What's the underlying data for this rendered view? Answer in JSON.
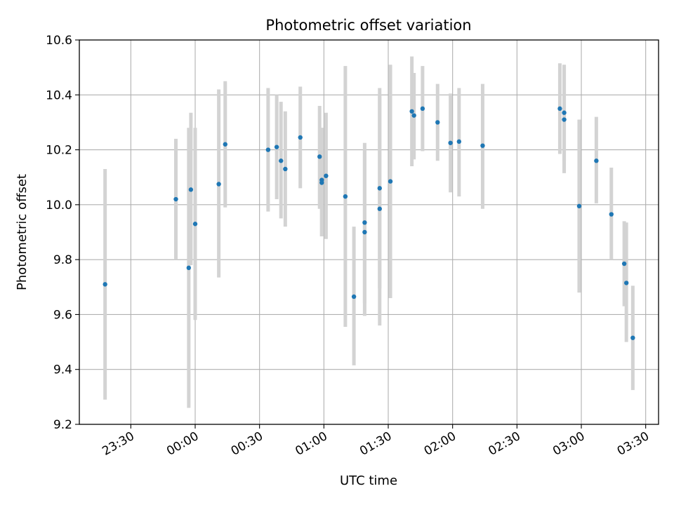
{
  "chart_data": {
    "type": "scatter",
    "title": "Photometric offset variation",
    "xlabel": "UTC time",
    "ylabel": "Photometric offset",
    "x_range": [
      "23:06",
      "03:36"
    ],
    "ylim": [
      9.2,
      10.6
    ],
    "grid": true,
    "x_ticks": [
      "23:30",
      "00:00",
      "00:30",
      "01:00",
      "01:30",
      "02:00",
      "02:30",
      "03:00",
      "03:30"
    ],
    "y_ticks": [
      "9.2",
      "9.4",
      "9.6",
      "9.8",
      "10.0",
      "10.2",
      "10.4",
      "10.6"
    ],
    "marker_color": "#1f77b4",
    "errorbar_color": "#d3d3d3",
    "series": [
      {
        "points": [
          {
            "x": "23:18",
            "y": 9.71,
            "lo": 9.29,
            "hi": 10.13
          },
          {
            "x": "23:51",
            "y": 10.02,
            "lo": 9.8,
            "hi": 10.24
          },
          {
            "x": "23:57",
            "y": 9.77,
            "lo": 9.26,
            "hi": 10.28
          },
          {
            "x": "23:58",
            "y": 10.055,
            "lo": 9.78,
            "hi": 10.335
          },
          {
            "x": "00:00",
            "y": 9.93,
            "lo": 9.58,
            "hi": 10.28
          },
          {
            "x": "00:11",
            "y": 10.075,
            "lo": 9.735,
            "hi": 10.42
          },
          {
            "x": "00:14",
            "y": 10.22,
            "lo": 9.99,
            "hi": 10.45
          },
          {
            "x": "00:34",
            "y": 10.2,
            "lo": 9.975,
            "hi": 10.425
          },
          {
            "x": "00:38",
            "y": 10.21,
            "lo": 10.02,
            "hi": 10.4
          },
          {
            "x": "00:40",
            "y": 10.16,
            "lo": 9.95,
            "hi": 10.375
          },
          {
            "x": "00:42",
            "y": 10.13,
            "lo": 9.92,
            "hi": 10.34
          },
          {
            "x": "00:49",
            "y": 10.245,
            "lo": 10.06,
            "hi": 10.43
          },
          {
            "x": "00:58",
            "y": 10.175,
            "lo": 9.985,
            "hi": 10.36
          },
          {
            "x": "00:59",
            "y": 10.09,
            "lo": 9.885,
            "hi": 10.28
          },
          {
            "x": "00:59",
            "y": 10.08,
            "lo": 9.885,
            "hi": 10.28
          },
          {
            "x": "01:01",
            "y": 10.105,
            "lo": 9.875,
            "hi": 10.335
          },
          {
            "x": "01:10",
            "y": 10.03,
            "lo": 9.555,
            "hi": 10.505
          },
          {
            "x": "01:14",
            "y": 9.665,
            "lo": 9.415,
            "hi": 9.92
          },
          {
            "x": "01:19",
            "y": 9.935,
            "lo": 9.64,
            "hi": 10.225
          },
          {
            "x": "01:19",
            "y": 9.9,
            "lo": 9.595,
            "hi": 10.2
          },
          {
            "x": "01:26",
            "y": 10.06,
            "lo": 9.695,
            "hi": 10.425
          },
          {
            "x": "01:26",
            "y": 9.985,
            "lo": 9.56,
            "hi": 10.4
          },
          {
            "x": "01:31",
            "y": 10.085,
            "lo": 9.66,
            "hi": 10.51
          },
          {
            "x": "01:41",
            "y": 10.34,
            "lo": 10.14,
            "hi": 10.54
          },
          {
            "x": "01:42",
            "y": 10.325,
            "lo": 10.165,
            "hi": 10.48
          },
          {
            "x": "01:46",
            "y": 10.35,
            "lo": 10.195,
            "hi": 10.505
          },
          {
            "x": "01:53",
            "y": 10.3,
            "lo": 10.16,
            "hi": 10.44
          },
          {
            "x": "01:59",
            "y": 10.225,
            "lo": 10.045,
            "hi": 10.405
          },
          {
            "x": "02:03",
            "y": 10.23,
            "lo": 10.03,
            "hi": 10.425
          },
          {
            "x": "02:14",
            "y": 10.215,
            "lo": 9.985,
            "hi": 10.44
          },
          {
            "x": "02:50",
            "y": 10.35,
            "lo": 10.185,
            "hi": 10.515
          },
          {
            "x": "02:52",
            "y": 10.335,
            "lo": 10.16,
            "hi": 10.51
          },
          {
            "x": "02:52",
            "y": 10.31,
            "lo": 10.115,
            "hi": 10.505
          },
          {
            "x": "02:59",
            "y": 9.995,
            "lo": 9.68,
            "hi": 10.31
          },
          {
            "x": "03:07",
            "y": 10.16,
            "lo": 10.005,
            "hi": 10.32
          },
          {
            "x": "03:14",
            "y": 9.965,
            "lo": 9.8,
            "hi": 10.135
          },
          {
            "x": "03:20",
            "y": 9.785,
            "lo": 9.63,
            "hi": 9.94
          },
          {
            "x": "03:21",
            "y": 9.715,
            "lo": 9.5,
            "hi": 9.935
          },
          {
            "x": "03:24",
            "y": 9.515,
            "lo": 9.325,
            "hi": 9.705
          }
        ]
      }
    ]
  }
}
